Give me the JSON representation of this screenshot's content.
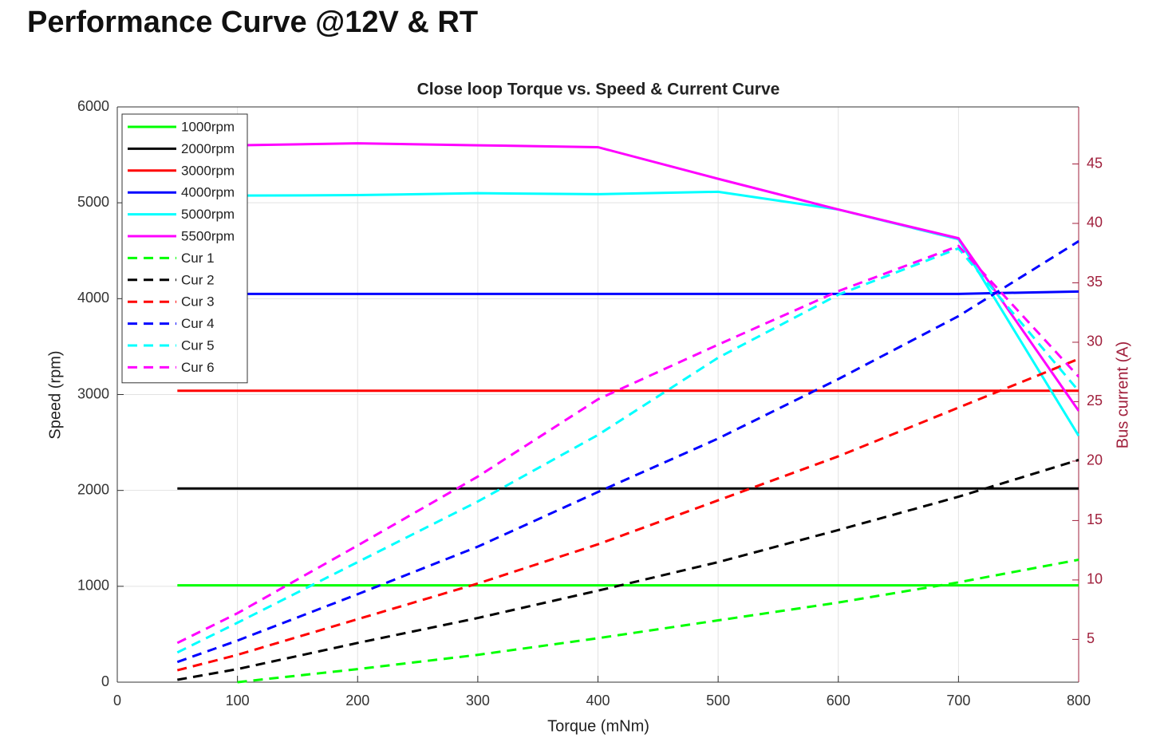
{
  "header": {
    "title": "Performance Curve @12V & RT"
  },
  "chart_data": {
    "type": "line",
    "title": "Close loop Torque vs. Speed & Current Curve",
    "x_label": "Torque (mNm)",
    "y_label": "Speed (rpm)",
    "y2_label": "Bus current (A)",
    "x": [
      50,
      100,
      200,
      300,
      400,
      500,
      600,
      700,
      800
    ],
    "xlim": [
      0,
      800
    ],
    "xticks": [
      0,
      100,
      200,
      300,
      400,
      500,
      600,
      700,
      800
    ],
    "ylim": [
      0,
      6000
    ],
    "yticks": [
      0,
      1000,
      2000,
      3000,
      4000,
      5000,
      6000
    ],
    "y2lim": [
      1.4,
      49.8
    ],
    "y2ticks": [
      5,
      10,
      15,
      20,
      25,
      30,
      35,
      40,
      45
    ],
    "y2_color": "#a0203c",
    "grid": true,
    "legend": "upper left",
    "series": [
      {
        "name": "1000rpm",
        "color": "#00ff00",
        "style": "solid",
        "values": [
          1010,
          1010,
          1010,
          1010,
          1010,
          1010,
          1010,
          1010,
          1010
        ]
      },
      {
        "name": "2000rpm",
        "color": "#000000",
        "style": "solid",
        "values": [
          2020,
          2020,
          2020,
          2020,
          2020,
          2020,
          2020,
          2020,
          2020
        ]
      },
      {
        "name": "3000rpm",
        "color": "#ff0000",
        "style": "solid",
        "values": [
          3040,
          3040,
          3040,
          3040,
          3040,
          3040,
          3040,
          3040,
          3040
        ]
      },
      {
        "name": "4000rpm",
        "color": "#0000ff",
        "style": "solid",
        "values": [
          4050,
          4050,
          4050,
          4050,
          4050,
          4050,
          4050,
          4050,
          4075
        ]
      },
      {
        "name": "5000rpm",
        "color": "#00ffff",
        "style": "solid",
        "values": [
          5070,
          5075,
          5080,
          5100,
          5090,
          5115,
          4930,
          4620,
          2570
        ]
      },
      {
        "name": "5500rpm",
        "color": "#ff00ff",
        "style": "solid",
        "values": [
          5590,
          5600,
          5620,
          5600,
          5580,
          5250,
          4930,
          4630,
          2830
        ]
      },
      {
        "name": "Cur 1",
        "color": "#00ff00",
        "style": "dashed",
        "axis": "y2",
        "values": [
          null,
          1.4,
          2.5,
          3.7,
          5.1,
          6.6,
          8.1,
          9.8,
          11.7
        ]
      },
      {
        "name": "Cur 2",
        "color": "#000000",
        "style": "dashed",
        "axis": "y2",
        "values": [
          1.6,
          2.5,
          4.7,
          6.8,
          9.1,
          11.5,
          14.2,
          17.0,
          20.1
        ]
      },
      {
        "name": "Cur 3",
        "color": "#ff0000",
        "style": "dashed",
        "axis": "y2",
        "values": [
          2.4,
          3.7,
          6.7,
          9.7,
          13.0,
          16.7,
          20.4,
          24.5,
          28.6
        ]
      },
      {
        "name": "Cur 4",
        "color": "#0000ff",
        "style": "dashed",
        "axis": "y2",
        "values": [
          3.1,
          4.9,
          8.8,
          12.8,
          17.4,
          21.9,
          26.9,
          32.2,
          38.5
        ]
      },
      {
        "name": "Cur 5",
        "color": "#00ffff",
        "style": "dashed",
        "axis": "y2",
        "values": [
          3.9,
          6.4,
          11.5,
          16.6,
          22.2,
          28.7,
          34.0,
          37.9,
          25.9
        ]
      },
      {
        "name": "Cur 6",
        "color": "#ff00ff",
        "style": "dashed",
        "axis": "y2",
        "values": [
          4.7,
          7.2,
          12.9,
          18.7,
          25.2,
          29.8,
          34.3,
          38.1,
          27.1
        ]
      }
    ]
  }
}
